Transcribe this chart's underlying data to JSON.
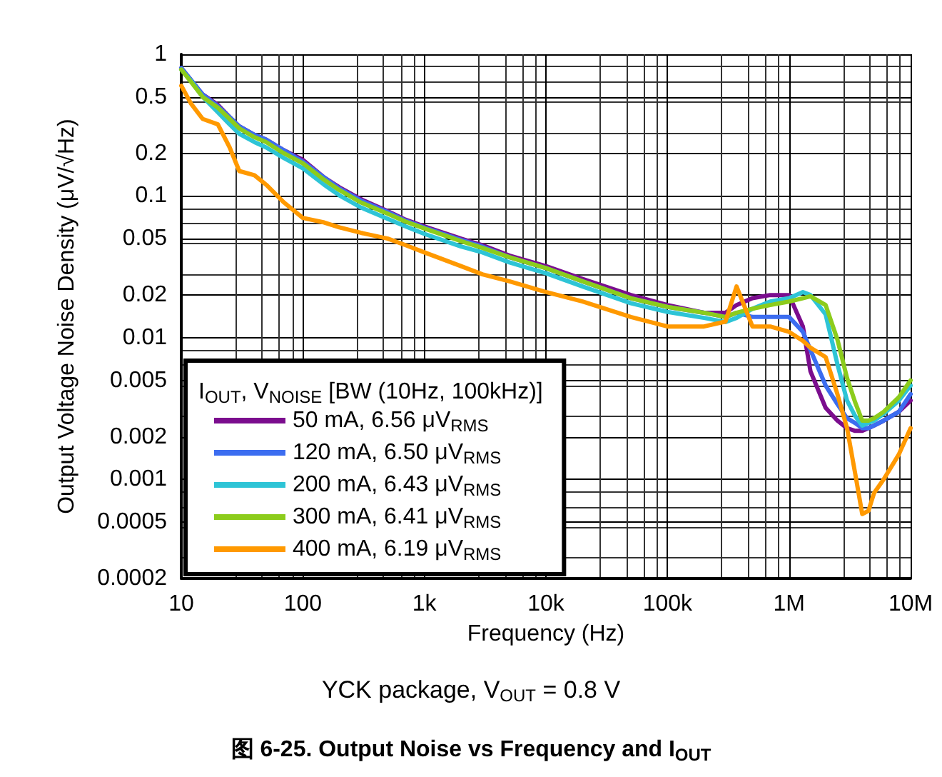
{
  "chart_data": {
    "type": "line",
    "title": "图 6-25. Output Noise vs Frequency and I$_{OUT}$",
    "subtitle": "YCK package, V$_{OUT}$ = 0.8 V",
    "xlabel": "Frequency (Hz)",
    "ylabel": "Output Voltage Noise Density (μV/√Hz)",
    "legend_title": "I$_{OUT}$, V$_{NOISE}$ [BW (10Hz, 100kHz)]",
    "log": "xy",
    "grid": true,
    "legend": "bottom left",
    "marker": "none",
    "line_style": "solid",
    "x": [
      10,
      12,
      15,
      20,
      25,
      30,
      40,
      50,
      70,
      100,
      150,
      200,
      300,
      500,
      700,
      1000,
      2000,
      3000,
      5000,
      10000,
      20000,
      50000,
      100000,
      200000,
      300000,
      370000,
      500000,
      700000,
      1000000,
      1300000,
      1500000,
      2000000,
      2500000,
      3000000,
      3500000,
      4000000,
      4500000,
      5000000,
      6000000,
      8000000,
      10000000
    ],
    "series": [
      {
        "name": "50 mA, 6.56 μV$_{RMS}$",
        "color": "#7b0d8e",
        "values": [
          0.8,
          0.66,
          0.52,
          0.44,
          0.36,
          0.31,
          0.27,
          0.25,
          0.21,
          0.18,
          0.135,
          0.115,
          0.095,
          0.078,
          0.068,
          0.061,
          0.05,
          0.045,
          0.038,
          0.032,
          0.026,
          0.02,
          0.017,
          0.015,
          0.015,
          0.017,
          0.019,
          0.02,
          0.02,
          0.012,
          0.0058,
          0.0032,
          0.0026,
          0.0023,
          0.0022,
          0.0022,
          0.0023,
          0.0024,
          0.0026,
          0.003,
          0.0036
        ]
      },
      {
        "name": "120 mA, 6.50 μV$_{RMS}$",
        "color": "#3c6df0",
        "values": [
          0.8,
          0.66,
          0.52,
          0.43,
          0.36,
          0.31,
          0.27,
          0.25,
          0.21,
          0.175,
          0.135,
          0.113,
          0.093,
          0.077,
          0.067,
          0.06,
          0.049,
          0.044,
          0.037,
          0.031,
          0.025,
          0.019,
          0.0165,
          0.015,
          0.014,
          0.015,
          0.014,
          0.014,
          0.014,
          0.011,
          0.0082,
          0.0046,
          0.0034,
          0.0027,
          0.0025,
          0.0023,
          0.0023,
          0.0024,
          0.0026,
          0.003,
          0.004
        ]
      },
      {
        "name": "200 mA, 6.43 μV$_{RMS}$",
        "color": "#2ec4d6",
        "values": [
          0.78,
          0.65,
          0.5,
          0.39,
          0.32,
          0.275,
          0.24,
          0.22,
          0.185,
          0.157,
          0.12,
          0.101,
          0.083,
          0.069,
          0.061,
          0.054,
          0.044,
          0.04,
          0.034,
          0.0285,
          0.023,
          0.0175,
          0.0152,
          0.0138,
          0.0129,
          0.0138,
          0.016,
          0.018,
          0.019,
          0.021,
          0.02,
          0.0146,
          0.0065,
          0.0036,
          0.0028,
          0.0024,
          0.0025,
          0.0026,
          0.0029,
          0.0036,
          0.0046
        ]
      },
      {
        "name": "300 mA, 6.41 μV$_{RMS}$",
        "color": "#8ccc1c",
        "values": [
          0.78,
          0.64,
          0.5,
          0.42,
          0.35,
          0.3,
          0.26,
          0.24,
          0.2,
          0.17,
          0.13,
          0.11,
          0.09,
          0.075,
          0.066,
          0.059,
          0.048,
          0.043,
          0.037,
          0.031,
          0.025,
          0.019,
          0.0165,
          0.015,
          0.014,
          0.015,
          0.016,
          0.017,
          0.018,
          0.019,
          0.0196,
          0.017,
          0.0097,
          0.0052,
          0.0035,
          0.0026,
          0.0026,
          0.0027,
          0.003,
          0.0038,
          0.005
        ]
      },
      {
        "name": "400 mA, 6.19 μV$_{RMS}$",
        "color": "#ff9900",
        "values": [
          0.6,
          0.45,
          0.35,
          0.32,
          0.22,
          0.15,
          0.14,
          0.12,
          0.09,
          0.07,
          0.065,
          0.06,
          0.055,
          0.05,
          0.045,
          0.04,
          0.032,
          0.028,
          0.025,
          0.021,
          0.018,
          0.014,
          0.012,
          0.012,
          0.013,
          0.023,
          0.012,
          0.012,
          0.011,
          0.0095,
          0.0085,
          0.0073,
          0.004,
          0.0023,
          0.0011,
          0.00057,
          0.0006,
          0.0008,
          0.001,
          0.0015,
          0.0023
        ]
      }
    ],
    "xlim": [
      10,
      10000000
    ],
    "xticks": [
      10,
      100,
      {
        "value": 1000,
        "label": "1k"
      },
      {
        "value": 10000,
        "label": "10k"
      },
      {
        "value": 100000,
        "label": "100k"
      },
      {
        "value": 1000000,
        "label": "1M"
      },
      {
        "value": 10000000,
        "label": "10M"
      }
    ],
    "ylim": [
      0.0002,
      1
    ],
    "yticks": [
      0.0002,
      0.0005,
      0.001,
      0.002,
      0.005,
      0.01,
      0.02,
      0.05,
      0.1,
      0.2,
      0.5,
      1
    ]
  }
}
